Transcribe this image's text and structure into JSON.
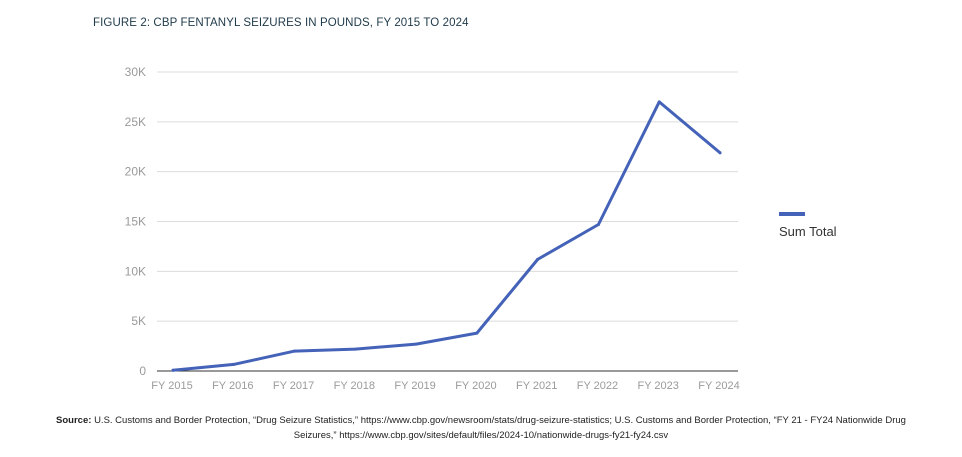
{
  "title": "FIGURE 2: CBP FENTANYL SEIZURES IN POUNDS, FY 2015 TO 2024",
  "legend_label": "Sum Total",
  "source": {
    "label": "Source:",
    "line1": "U.S. Customs and Border Protection, “Drug Seizure Statistics,” https://www.cbp.gov/newsroom/stats/drug-seizure-statistics; U.S. Customs and Border Protection, “FY 21 - FY24 Nationwide Drug",
    "line2": "Seizures,” https://www.cbp.gov/sites/default/files/2024-10/nationwide-drugs-fy21-fy24.csv"
  },
  "colors": {
    "line": "#4463b8",
    "grid": "#dcdcdc",
    "axis": "#333333",
    "tick_label": "#9a9a9a"
  },
  "chart_data": {
    "type": "line",
    "title": "FIGURE 2: CBP FENTANYL SEIZURES IN POUNDS, FY 2015 TO 2024",
    "xlabel": "",
    "ylabel": "",
    "categories": [
      "FY 2015",
      "FY 2016",
      "FY 2017",
      "FY 2018",
      "FY 2019",
      "FY 2020",
      "FY 2021",
      "FY 2022",
      "FY 2023",
      "FY 2024"
    ],
    "series": [
      {
        "name": "Sum Total",
        "values": [
          70,
          660,
          2000,
          2200,
          2700,
          3800,
          11200,
          14700,
          27000,
          21900
        ]
      }
    ],
    "ylim": [
      0,
      30000
    ],
    "yticks": [
      0,
      5000,
      10000,
      15000,
      20000,
      25000,
      30000
    ],
    "ytick_labels": [
      "0",
      "5K",
      "10K",
      "15K",
      "20K",
      "25K",
      "30K"
    ],
    "grid": true,
    "legend_position": "right"
  }
}
